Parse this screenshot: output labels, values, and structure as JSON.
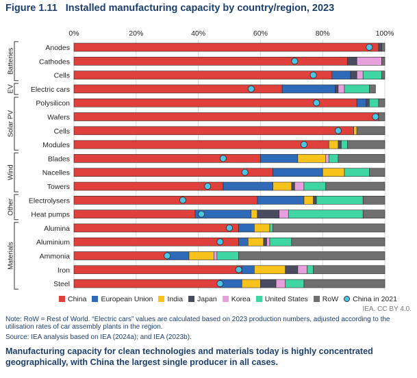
{
  "figure": {
    "number": "Figure 1.11",
    "title": "Installed manufacturing capacity by country/region, 2023",
    "credit": "IEA. CC BY 4.0.",
    "note": "Note: RoW = Rest of World. “Electric cars” values are calculated based on 2023 production numbers, adjusted according to the utilisation rates of car assembly plants in the region.",
    "source": "Source: IEA analysis based on IEA (2024a); and IEA (2023b).",
    "headline": "Manufacturing capacity for clean technologies and materials today is highly concentrated geographically, with China the largest single producer in all cases."
  },
  "colors": {
    "China": "#e0403c",
    "European Union": "#2e6ab8",
    "India": "#f7c21b",
    "Japan": "#4a4a60",
    "Korea": "#e6a0dc",
    "United States": "#3fd6a4",
    "RoW": "#6f6f6f",
    "China in 2021": "#4dc4e6"
  },
  "chart_data": {
    "type": "bar",
    "orientation": "horizontal",
    "stacked": true,
    "title": "Installed manufacturing capacity by country/region, 2023",
    "xlim": [
      0,
      100
    ],
    "x_ticks": [
      "0%",
      "20%",
      "40%",
      "60%",
      "80%",
      "100%"
    ],
    "groups": [
      {
        "name": "Batteries",
        "rows": [
          "Anodes",
          "Cathodes",
          "Cells"
        ]
      },
      {
        "name": "EV",
        "rows": [
          "Electric cars"
        ]
      },
      {
        "name": "Solar PV",
        "rows": [
          "Polysilicon",
          "Wafers",
          "Cells",
          "Modules"
        ]
      },
      {
        "name": "Wind",
        "rows": [
          "Blades",
          "Nacelles",
          "Towers"
        ]
      },
      {
        "name": "Other",
        "rows": [
          "Electrolysers",
          "Heat pumps"
        ]
      },
      {
        "name": "Materials",
        "rows": [
          "Alumina",
          "Aluminium",
          "Ammonia",
          "Iron",
          "Steel"
        ]
      }
    ],
    "categories": [
      "Anodes",
      "Cathodes",
      "Cells",
      "Electric cars",
      "Polysilicon",
      "Wafers",
      "Cells",
      "Modules",
      "Blades",
      "Nacelles",
      "Towers",
      "Electrolysers",
      "Heat pumps",
      "Alumina",
      "Aluminium",
      "Ammonia",
      "Iron",
      "Steel"
    ],
    "series": [
      {
        "name": "China",
        "values": [
          98,
          88,
          83,
          67,
          91,
          98,
          90,
          82,
          60,
          64,
          48,
          59,
          39,
          53,
          53,
          30,
          54,
          47
        ]
      },
      {
        "name": "European Union",
        "values": [
          0,
          0,
          6,
          17,
          3,
          0,
          0,
          0,
          12,
          16,
          16,
          15,
          18,
          5,
          3,
          7,
          4,
          7
        ]
      },
      {
        "name": "India",
        "values": [
          0,
          0,
          0,
          0,
          0,
          0,
          1,
          3,
          9,
          7,
          6,
          3,
          2,
          5,
          5,
          8,
          10,
          6
        ]
      },
      {
        "name": "Japan",
        "values": [
          1,
          3,
          2,
          1,
          1,
          0,
          0,
          1,
          0,
          0,
          1,
          1,
          7,
          0,
          1,
          0,
          4,
          5
        ]
      },
      {
        "name": "Korea",
        "values": [
          0,
          8,
          2,
          2,
          0,
          0,
          0,
          0,
          1,
          0,
          3,
          0,
          3,
          0,
          1,
          1,
          3,
          3
        ]
      },
      {
        "name": "United States",
        "values": [
          0,
          0,
          6,
          8,
          3,
          0,
          0,
          2,
          3,
          8,
          7,
          15,
          24,
          1,
          7,
          7,
          2,
          6
        ]
      },
      {
        "name": "RoW",
        "values": [
          1,
          1,
          1,
          2,
          2,
          2,
          9,
          12,
          15,
          5,
          19,
          7,
          7,
          36,
          30,
          47,
          23,
          26
        ]
      }
    ],
    "marker_series": {
      "name": "China in 2021",
      "values": [
        95,
        71,
        77,
        57,
        78,
        97,
        85,
        74,
        48,
        55,
        43,
        35,
        41,
        50,
        47,
        30,
        53,
        47
      ]
    },
    "legend": [
      "China",
      "European Union",
      "India",
      "Japan",
      "Korea",
      "United States",
      "RoW",
      "China in 2021"
    ]
  }
}
